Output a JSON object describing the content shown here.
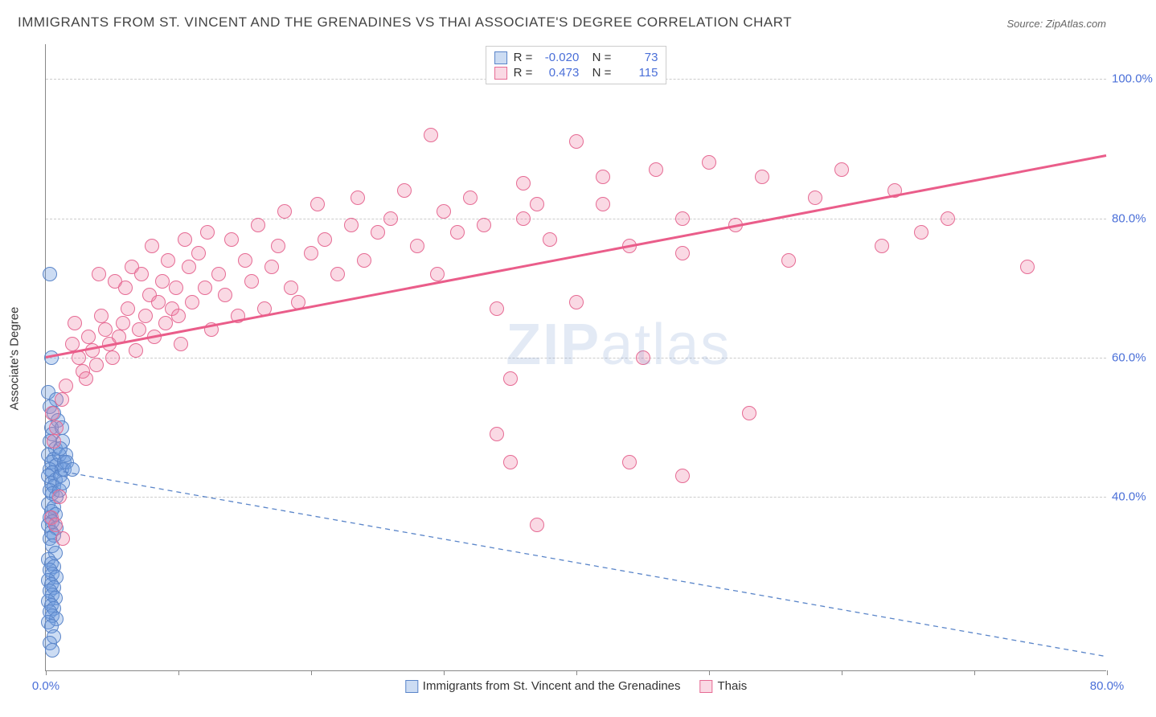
{
  "title": "IMMIGRANTS FROM ST. VINCENT AND THE GRENADINES VS THAI ASSOCIATE'S DEGREE CORRELATION CHART",
  "source": "Source: ZipAtlas.com",
  "watermark_zip": "ZIP",
  "watermark_atlas": "atlas",
  "ylabel": "Associate's Degree",
  "chart": {
    "type": "scatter",
    "xlim": [
      0,
      80
    ],
    "ylim": [
      15,
      105
    ],
    "yticks": [
      40,
      60,
      80,
      100
    ],
    "ytick_labels": [
      "40.0%",
      "60.0%",
      "80.0%",
      "100.0%"
    ],
    "xticks": [
      0,
      10,
      20,
      30,
      40,
      50,
      60,
      70,
      80
    ],
    "xtick_labels_shown": {
      "0": "0.0%",
      "80": "80.0%"
    },
    "background_color": "#ffffff",
    "grid_color": "#cccccc",
    "axis_color": "#888888",
    "marker_radius": 9,
    "series": [
      {
        "id": "svg",
        "legend_label": "Immigrants from St. Vincent and the Grenadines",
        "fill": "rgba(110,155,220,0.35)",
        "stroke": "#5a85c9",
        "stroke_width": 1.2,
        "R": "-0.020",
        "N": "73",
        "trend": {
          "y_at_x0": 44,
          "y_at_xmax": 17,
          "stroke": "#5a85c9",
          "width": 1.3,
          "dash": "6,5"
        },
        "points": [
          [
            0.3,
            72
          ],
          [
            0.4,
            60
          ],
          [
            0.2,
            55
          ],
          [
            0.8,
            54
          ],
          [
            0.3,
            53
          ],
          [
            0.6,
            52
          ],
          [
            0.9,
            51
          ],
          [
            0.4,
            50
          ],
          [
            0.5,
            49
          ],
          [
            0.3,
            48
          ],
          [
            0.7,
            47
          ],
          [
            0.2,
            46
          ],
          [
            0.6,
            45.5
          ],
          [
            0.4,
            45
          ],
          [
            0.8,
            44.5
          ],
          [
            0.3,
            44
          ],
          [
            0.5,
            43.5
          ],
          [
            0.2,
            43
          ],
          [
            0.7,
            42.5
          ],
          [
            0.4,
            42
          ],
          [
            0.6,
            41.5
          ],
          [
            0.3,
            41
          ],
          [
            0.5,
            40.5
          ],
          [
            0.8,
            40
          ],
          [
            0.2,
            39
          ],
          [
            0.6,
            38.5
          ],
          [
            0.4,
            38
          ],
          [
            0.7,
            37.5
          ],
          [
            0.3,
            37
          ],
          [
            0.5,
            36.5
          ],
          [
            0.2,
            36
          ],
          [
            0.8,
            35.5
          ],
          [
            0.4,
            35
          ],
          [
            0.6,
            34.5
          ],
          [
            0.3,
            34
          ],
          [
            0.5,
            33
          ],
          [
            0.7,
            32
          ],
          [
            0.2,
            31
          ],
          [
            0.4,
            30.5
          ],
          [
            0.6,
            30
          ],
          [
            0.3,
            29.5
          ],
          [
            0.5,
            29
          ],
          [
            0.8,
            28.5
          ],
          [
            0.2,
            28
          ],
          [
            0.4,
            27.5
          ],
          [
            0.6,
            27
          ],
          [
            0.3,
            26.5
          ],
          [
            0.5,
            26
          ],
          [
            0.7,
            25.5
          ],
          [
            0.2,
            25
          ],
          [
            0.4,
            24.5
          ],
          [
            0.6,
            24
          ],
          [
            0.3,
            23.5
          ],
          [
            0.5,
            23
          ],
          [
            0.8,
            22.5
          ],
          [
            0.2,
            22
          ],
          [
            0.4,
            21.5
          ],
          [
            0.6,
            20
          ],
          [
            0.3,
            19
          ],
          [
            0.5,
            18
          ],
          [
            1.2,
            44
          ],
          [
            1.0,
            46
          ],
          [
            1.3,
            48
          ],
          [
            1.1,
            43
          ],
          [
            1.4,
            45
          ],
          [
            1.0,
            41
          ],
          [
            1.2,
            50
          ],
          [
            1.3,
            42
          ],
          [
            1.5,
            46
          ],
          [
            1.1,
            47
          ],
          [
            1.6,
            45
          ],
          [
            1.4,
            44
          ],
          [
            2.0,
            44
          ]
        ]
      },
      {
        "id": "thai",
        "legend_label": "Thais",
        "fill": "rgba(240,130,165,0.30)",
        "stroke": "#e66b94",
        "stroke_width": 1.2,
        "R": "0.473",
        "N": "115",
        "trend": {
          "y_at_x0": 60,
          "y_at_xmax": 89,
          "stroke": "#ea5d8a",
          "width": 3,
          "dash": null
        },
        "points": [
          [
            0.5,
            52
          ],
          [
            0.8,
            50
          ],
          [
            0.6,
            48
          ],
          [
            1.0,
            40
          ],
          [
            0.4,
            37
          ],
          [
            0.7,
            36
          ],
          [
            1.2,
            54
          ],
          [
            1.5,
            56
          ],
          [
            1.3,
            34
          ],
          [
            2,
            62
          ],
          [
            2.5,
            60
          ],
          [
            2.2,
            65
          ],
          [
            2.8,
            58
          ],
          [
            3,
            57
          ],
          [
            3.2,
            63
          ],
          [
            3.5,
            61
          ],
          [
            3.8,
            59
          ],
          [
            4,
            72
          ],
          [
            4.5,
            64
          ],
          [
            4.2,
            66
          ],
          [
            4.8,
            62
          ],
          [
            5,
            60
          ],
          [
            5.2,
            71
          ],
          [
            5.5,
            63
          ],
          [
            5.8,
            65
          ],
          [
            6,
            70
          ],
          [
            6.2,
            67
          ],
          [
            6.5,
            73
          ],
          [
            6.8,
            61
          ],
          [
            7,
            64
          ],
          [
            7.2,
            72
          ],
          [
            7.5,
            66
          ],
          [
            7.8,
            69
          ],
          [
            8,
            76
          ],
          [
            8.5,
            68
          ],
          [
            8.2,
            63
          ],
          [
            8.8,
            71
          ],
          [
            9,
            65
          ],
          [
            9.2,
            74
          ],
          [
            9.5,
            67
          ],
          [
            9.8,
            70
          ],
          [
            10,
            66
          ],
          [
            10.5,
            77
          ],
          [
            10.2,
            62
          ],
          [
            10.8,
            73
          ],
          [
            11,
            68
          ],
          [
            11.5,
            75
          ],
          [
            12,
            70
          ],
          [
            12.2,
            78
          ],
          [
            12.5,
            64
          ],
          [
            13,
            72
          ],
          [
            13.5,
            69
          ],
          [
            14,
            77
          ],
          [
            14.5,
            66
          ],
          [
            15,
            74
          ],
          [
            15.5,
            71
          ],
          [
            16,
            79
          ],
          [
            16.5,
            67
          ],
          [
            17,
            73
          ],
          [
            17.5,
            76
          ],
          [
            18,
            81
          ],
          [
            18.5,
            70
          ],
          [
            19,
            68
          ],
          [
            20,
            75
          ],
          [
            20.5,
            82
          ],
          [
            21,
            77
          ],
          [
            22,
            72
          ],
          [
            23,
            79
          ],
          [
            23.5,
            83
          ],
          [
            24,
            74
          ],
          [
            25,
            78
          ],
          [
            26,
            80
          ],
          [
            27,
            84
          ],
          [
            28,
            76
          ],
          [
            29,
            92
          ],
          [
            29.5,
            72
          ],
          [
            30,
            81
          ],
          [
            31,
            78
          ],
          [
            32,
            83
          ],
          [
            33,
            79
          ],
          [
            34,
            67
          ],
          [
            35,
            57
          ],
          [
            36,
            80
          ],
          [
            37,
            82
          ],
          [
            38,
            77
          ],
          [
            34,
            49
          ],
          [
            35,
            45
          ],
          [
            37,
            36
          ],
          [
            40,
            91
          ],
          [
            42,
            82
          ],
          [
            44,
            76
          ],
          [
            46,
            87
          ],
          [
            48,
            80
          ],
          [
            50,
            88
          ],
          [
            52,
            79
          ],
          [
            54,
            86
          ],
          [
            56,
            74
          ],
          [
            58,
            83
          ],
          [
            53,
            52
          ],
          [
            44,
            45
          ],
          [
            40,
            68
          ],
          [
            42,
            86
          ],
          [
            45,
            60
          ],
          [
            48,
            43
          ],
          [
            36,
            85
          ],
          [
            60,
            87
          ],
          [
            63,
            76
          ],
          [
            64,
            84
          ],
          [
            66,
            78
          ],
          [
            68,
            80
          ],
          [
            74,
            73
          ],
          [
            48,
            75
          ]
        ]
      }
    ]
  }
}
